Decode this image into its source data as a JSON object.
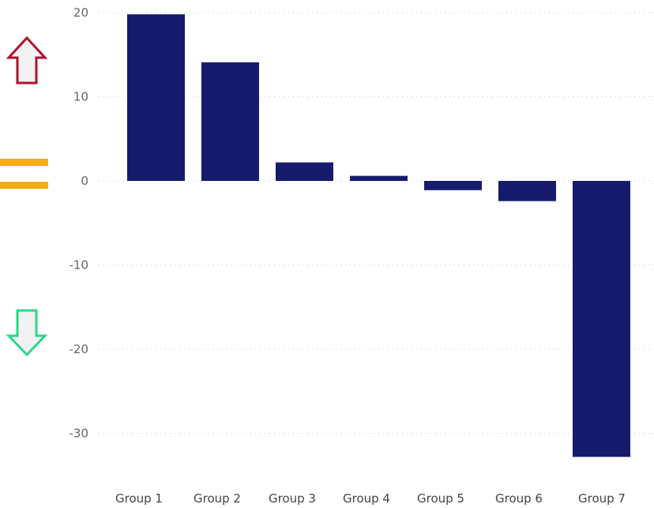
{
  "indicators": {
    "up": {
      "icon": "up-arrow-icon",
      "stroke": "#b0122c",
      "fill": "#f2f2f2"
    },
    "equal": {
      "icon": "equals-icon",
      "fill": "#f5ad1b"
    },
    "down": {
      "icon": "down-arrow-icon",
      "stroke": "#2dd68a",
      "fill": "#f2f2f2"
    }
  },
  "chart_data": {
    "type": "bar",
    "categories": [
      "Group 1",
      "Group 2",
      "Group 3",
      "Group 4",
      "Group 5",
      "Group 6",
      "Group 7"
    ],
    "values": [
      19.8,
      14.1,
      2.2,
      0.6,
      -1.1,
      -2.4,
      -32.8
    ],
    "yticks": [
      20,
      10,
      0,
      -10,
      -20,
      -30
    ],
    "ytick_labels": [
      "20",
      "10",
      "0",
      "-10",
      "-20",
      "-30"
    ],
    "ylim": [
      -34.4,
      20.8
    ],
    "grid": true,
    "bar_color": "#161b6e"
  }
}
